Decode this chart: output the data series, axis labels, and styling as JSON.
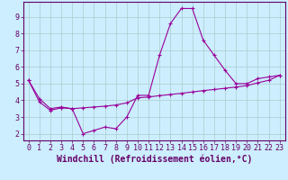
{
  "xlabel": "Windchill (Refroidissement éolien,°C)",
  "ylabel": "",
  "background_color": "#cceeff",
  "grid_color": "#aacccc",
  "line_color": "#990099",
  "xlim_min": -0.5,
  "xlim_max": 23.5,
  "ylim_min": 1.6,
  "ylim_max": 9.9,
  "xticks": [
    0,
    1,
    2,
    3,
    4,
    5,
    6,
    7,
    8,
    9,
    10,
    11,
    12,
    13,
    14,
    15,
    16,
    17,
    18,
    19,
    20,
    21,
    22,
    23
  ],
  "yticks": [
    2,
    3,
    4,
    5,
    6,
    7,
    8,
    9
  ],
  "curve1_x": [
    0,
    1,
    2,
    3,
    4,
    5,
    6,
    7,
    8,
    9,
    10,
    11,
    12,
    13,
    14,
    15,
    16,
    17,
    18,
    19,
    20,
    21,
    22,
    23
  ],
  "curve1_y": [
    5.2,
    4.1,
    3.5,
    3.6,
    3.5,
    2.0,
    2.2,
    2.4,
    2.3,
    3.0,
    4.3,
    4.3,
    6.7,
    8.6,
    9.5,
    9.5,
    7.6,
    6.7,
    5.8,
    5.0,
    5.0,
    5.3,
    5.4,
    5.5
  ],
  "curve2_x": [
    0,
    1,
    2,
    3,
    4,
    5,
    6,
    7,
    8,
    9,
    10,
    11,
    12,
    13,
    14,
    15,
    16,
    17,
    18,
    19,
    20,
    21,
    22,
    23
  ],
  "curve2_y": [
    5.2,
    3.9,
    3.4,
    3.55,
    3.5,
    3.55,
    3.6,
    3.65,
    3.72,
    3.85,
    4.15,
    4.2,
    4.28,
    4.35,
    4.42,
    4.5,
    4.58,
    4.65,
    4.72,
    4.8,
    4.88,
    5.05,
    5.2,
    5.5
  ],
  "xlabel_fontsize": 7,
  "tick_fontsize": 6,
  "axis_color": "#660066",
  "spine_color": "#660066"
}
